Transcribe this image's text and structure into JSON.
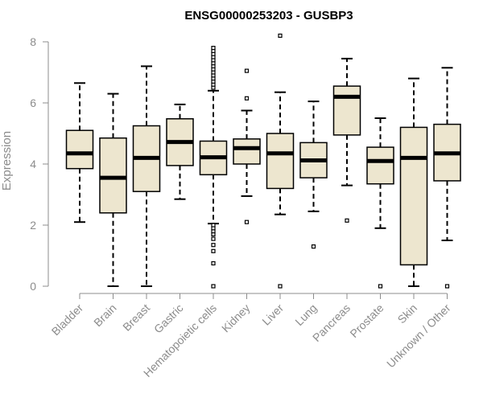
{
  "chart_data": {
    "type": "boxplot",
    "title": "ENSG00000253203 - GUSBP3",
    "xlabel": "",
    "ylabel": "Expression",
    "ylim": [
      0,
      8
    ],
    "yticks": [
      0,
      2,
      4,
      6,
      8
    ],
    "grid": false,
    "colors": {
      "box_fill": "#ede6cf",
      "box_stroke": "#000000",
      "axis": "#8c8c8c",
      "text": "#8c8c8c"
    },
    "categories": [
      "Bladder",
      "Brain",
      "Breast",
      "Gastric",
      "Hematopoietic cells",
      "Kidney",
      "Liver",
      "Lung",
      "Pancreas",
      "Prostate",
      "Skin",
      "Unknown / Other"
    ],
    "boxes": [
      {
        "category": "Bladder",
        "whisker_low": 2.1,
        "q1": 3.85,
        "median": 4.35,
        "q3": 5.1,
        "whisker_high": 6.65,
        "outliers": []
      },
      {
        "category": "Brain",
        "whisker_low": 0.0,
        "q1": 2.4,
        "median": 3.55,
        "q3": 4.85,
        "whisker_high": 6.3,
        "outliers": []
      },
      {
        "category": "Breast",
        "whisker_low": 0.0,
        "q1": 3.1,
        "median": 4.2,
        "q3": 5.25,
        "whisker_high": 7.2,
        "outliers": []
      },
      {
        "category": "Gastric",
        "whisker_low": 2.85,
        "q1": 3.95,
        "median": 4.72,
        "q3": 5.48,
        "whisker_high": 5.95,
        "outliers": []
      },
      {
        "category": "Hematopoietic cells",
        "whisker_low": 2.05,
        "q1": 3.65,
        "median": 4.22,
        "q3": 4.75,
        "whisker_high": 6.4,
        "outliers": [
          0.0,
          0.75,
          1.15,
          1.35,
          1.55,
          1.7,
          1.8,
          1.9,
          2.0,
          6.5,
          6.6,
          6.7,
          6.8,
          6.9,
          7.0,
          7.1,
          7.2,
          7.3,
          7.4,
          7.5,
          7.6,
          7.7,
          7.8
        ]
      },
      {
        "category": "Kidney",
        "whisker_low": 2.95,
        "q1": 4.0,
        "median": 4.52,
        "q3": 4.82,
        "whisker_high": 5.75,
        "outliers": [
          2.1,
          6.15,
          7.05
        ]
      },
      {
        "category": "Liver",
        "whisker_low": 2.35,
        "q1": 3.2,
        "median": 4.35,
        "q3": 5.0,
        "whisker_high": 6.35,
        "outliers": [
          0.0,
          8.2
        ]
      },
      {
        "category": "Lung",
        "whisker_low": 2.45,
        "q1": 3.55,
        "median": 4.12,
        "q3": 4.7,
        "whisker_high": 6.05,
        "outliers": [
          1.3
        ]
      },
      {
        "category": "Pancreas",
        "whisker_low": 3.3,
        "q1": 4.95,
        "median": 6.2,
        "q3": 6.55,
        "whisker_high": 7.45,
        "outliers": [
          2.15
        ]
      },
      {
        "category": "Prostate",
        "whisker_low": 1.9,
        "q1": 3.35,
        "median": 4.1,
        "q3": 4.55,
        "whisker_high": 5.5,
        "outliers": [
          0.0
        ]
      },
      {
        "category": "Skin",
        "whisker_low": 0.0,
        "q1": 0.7,
        "median": 4.2,
        "q3": 5.2,
        "whisker_high": 6.8,
        "outliers": []
      },
      {
        "category": "Unknown / Other",
        "whisker_low": 1.5,
        "q1": 3.45,
        "median": 4.35,
        "q3": 5.3,
        "whisker_high": 7.15,
        "outliers": [
          0.0
        ]
      }
    ]
  }
}
